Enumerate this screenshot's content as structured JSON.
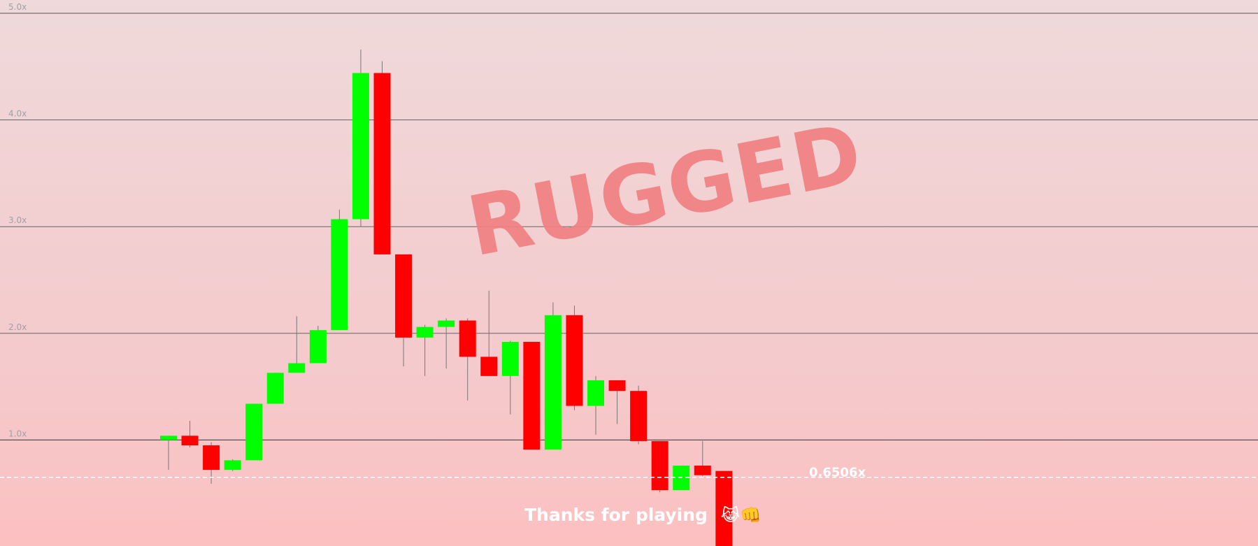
{
  "chart_data": {
    "type": "candlestick",
    "y_ticks": [
      "1.0x",
      "2.0x",
      "3.0x",
      "4.0x",
      "5.0x"
    ],
    "ylim": [
      0.0,
      5.0
    ],
    "grid": true,
    "current_price": 0.6506,
    "current_price_label": "0.6506x",
    "candles": [
      {
        "open": 1.0,
        "close": 1.04,
        "high": 1.04,
        "low": 0.72
      },
      {
        "open": 1.04,
        "close": 0.95,
        "high": 1.18,
        "low": 0.93
      },
      {
        "open": 0.95,
        "close": 0.72,
        "high": 0.98,
        "low": 0.59
      },
      {
        "open": 0.72,
        "close": 0.81,
        "high": 0.82,
        "low": 0.71
      },
      {
        "open": 0.81,
        "close": 1.34,
        "high": 1.34,
        "low": 0.81
      },
      {
        "open": 1.34,
        "close": 1.63,
        "high": 1.63,
        "low": 1.34
      },
      {
        "open": 1.63,
        "close": 1.72,
        "high": 2.16,
        "low": 1.63
      },
      {
        "open": 1.72,
        "close": 2.03,
        "high": 2.07,
        "low": 1.72
      },
      {
        "open": 2.03,
        "close": 3.07,
        "high": 3.16,
        "low": 2.03
      },
      {
        "open": 3.07,
        "close": 4.44,
        "high": 4.66,
        "low": 3.0
      },
      {
        "open": 4.44,
        "close": 2.74,
        "high": 4.55,
        "low": 2.74
      },
      {
        "open": 2.74,
        "close": 1.96,
        "high": 2.74,
        "low": 1.69
      },
      {
        "open": 1.96,
        "close": 2.06,
        "high": 2.08,
        "low": 1.6
      },
      {
        "open": 2.06,
        "close": 2.12,
        "high": 2.14,
        "low": 1.67
      },
      {
        "open": 2.12,
        "close": 1.78,
        "high": 2.14,
        "low": 1.37
      },
      {
        "open": 1.78,
        "close": 1.6,
        "high": 2.4,
        "low": 1.6
      },
      {
        "open": 1.6,
        "close": 1.92,
        "high": 1.93,
        "low": 1.24
      },
      {
        "open": 1.92,
        "close": 0.91,
        "high": 1.92,
        "low": 0.91
      },
      {
        "open": 0.91,
        "close": 2.17,
        "high": 2.29,
        "low": 0.91
      },
      {
        "open": 2.17,
        "close": 1.32,
        "high": 2.26,
        "low": 1.28
      },
      {
        "open": 1.32,
        "close": 1.56,
        "high": 1.6,
        "low": 1.05
      },
      {
        "open": 1.56,
        "close": 1.46,
        "high": 1.56,
        "low": 1.15
      },
      {
        "open": 1.46,
        "close": 0.99,
        "high": 1.51,
        "low": 0.96
      },
      {
        "open": 0.99,
        "close": 0.53,
        "high": 0.99,
        "low": 0.51
      },
      {
        "open": 0.53,
        "close": 0.76,
        "high": 0.76,
        "low": 0.53
      },
      {
        "open": 0.76,
        "close": 0.67,
        "high": 0.99,
        "low": 0.66
      },
      {
        "open": 0.71,
        "close": -0.1,
        "high": 0.71,
        "low": -0.1
      }
    ],
    "colors": {
      "up": "#00ff00",
      "down": "#ff0000",
      "grid": "#555555",
      "wick": "#777777"
    }
  },
  "overlay": {
    "status_text": "RUGGED",
    "footer_text": "Thanks for playing",
    "footer_emoji": "😹👊"
  }
}
